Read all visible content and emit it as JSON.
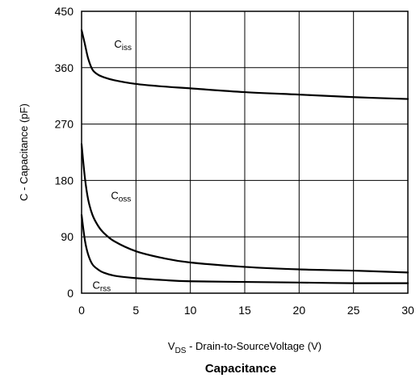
{
  "chart_data": {
    "type": "line",
    "title": "Capacitance",
    "xlabel": "V<sub>DS</sub> - Drain-to-SourceVoltage (V)",
    "xlabel_parts": {
      "main": "V",
      "sub": "DS",
      "rest": " - Drain-to-SourceVoltage (V)"
    },
    "ylabel": "C - Capacitance (pF)",
    "xlim": [
      0,
      30
    ],
    "ylim": [
      0,
      450
    ],
    "xticks": [
      0,
      5,
      10,
      15,
      20,
      25,
      30
    ],
    "yticks": [
      0,
      90,
      180,
      270,
      360,
      450
    ],
    "grid": true,
    "series": [
      {
        "name": "Ciss",
        "label_main": "C",
        "label_sub": "iss",
        "x": [
          0,
          0.3,
          0.6,
          1,
          1.5,
          2,
          3,
          5,
          7.5,
          10,
          15,
          20,
          25,
          30
        ],
        "y": [
          420,
          398,
          375,
          357,
          349,
          345,
          340,
          334,
          330,
          327,
          321,
          317,
          313,
          310
        ]
      },
      {
        "name": "Coss",
        "label_main": "C",
        "label_sub": "oss",
        "x": [
          0,
          0.3,
          0.6,
          1,
          1.5,
          2,
          3,
          5,
          7.5,
          10,
          15,
          20,
          25,
          30
        ],
        "y": [
          238,
          185,
          150,
          125,
          108,
          97,
          83,
          67,
          56,
          49,
          42,
          38,
          36,
          33
        ]
      },
      {
        "name": "Crss",
        "label_main": "C",
        "label_sub": "rss",
        "x": [
          0,
          0.3,
          0.6,
          1,
          1.5,
          2,
          3,
          5,
          7.5,
          10,
          15,
          20,
          25,
          30
        ],
        "y": [
          125,
          85,
          62,
          46,
          38,
          33,
          28,
          24,
          21,
          19,
          18,
          17,
          16,
          16
        ]
      }
    ]
  }
}
